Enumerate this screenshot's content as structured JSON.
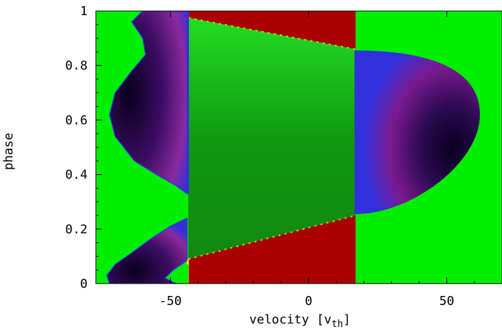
{
  "chart_data": {
    "type": "heatmap",
    "title": "",
    "xlabel": "velocity [v",
    "xlabel_sub": "th",
    "xlabel_close": "]",
    "ylabel": "phase",
    "xlim": [
      -77,
      70
    ],
    "ylim": [
      0,
      1
    ],
    "x_ticks": [
      {
        "value": -50,
        "label": "-50"
      },
      {
        "value": 0,
        "label": "0"
      },
      {
        "value": 50,
        "label": "50"
      }
    ],
    "y_ticks": [
      {
        "value": 0,
        "label": "0"
      },
      {
        "value": 0.2,
        "label": "0.2"
      },
      {
        "value": 0.4,
        "label": "0.4"
      },
      {
        "value": 0.6,
        "label": "0.6"
      },
      {
        "value": 0.8,
        "label": "0.8"
      },
      {
        "value": 1,
        "label": "1"
      }
    ],
    "regions": {
      "red_band_x": [
        -43.5,
        17
      ],
      "red_upper_edge": {
        "x": [
          -43.5,
          17
        ],
        "phase": [
          0.975,
          0.86
        ]
      },
      "red_lower_edge": {
        "x": [
          -43.5,
          17
        ],
        "phase": [
          0.09,
          0.25
        ]
      },
      "right_lobe": {
        "x_start": 17,
        "phase_bottom": 0.255,
        "phase_top": 0.855,
        "peak_x": 62,
        "peak_phase": 0.62
      },
      "left_upper_lobe": {
        "outer": [
          [
            -60,
            1
          ],
          [
            -64,
            0.96
          ],
          [
            -60,
            0.9
          ],
          [
            -59,
            0.84
          ],
          [
            -64,
            0.78
          ],
          [
            -70,
            0.7
          ],
          [
            -72,
            0.62
          ],
          [
            -70,
            0.54
          ],
          [
            -63,
            0.45
          ],
          [
            -55,
            0.4
          ],
          [
            -48,
            0.36
          ],
          [
            -44,
            0.33
          ]
        ],
        "inner_x": -43.5,
        "phase_range": [
          0.33,
          1.0
        ]
      },
      "left_lower_lobe": {
        "outer": [
          [
            -44,
            0.24
          ],
          [
            -50,
            0.21
          ],
          [
            -57,
            0.165
          ],
          [
            -63,
            0.12
          ],
          [
            -70,
            0.07
          ],
          [
            -73,
            0.03
          ],
          [
            -72,
            0
          ]
        ],
        "inner": [
          [
            -48,
            0
          ],
          [
            -52,
            0.02
          ],
          [
            -49,
            0.05
          ],
          [
            -44,
            0.085
          ]
        ],
        "phase_range": [
          0,
          0.24
        ]
      }
    },
    "colors": {
      "background": "#00ee00",
      "red_band": "#aa0000",
      "central_green_light": "#22dd22",
      "central_green_dark": "#118811",
      "lobe_edge": "#3030dd",
      "lobe_mid": "#7a1a90",
      "lobe_core": "#0a0020",
      "boundary_yellow": "#f4f400"
    },
    "grid": false,
    "legend": "none"
  }
}
